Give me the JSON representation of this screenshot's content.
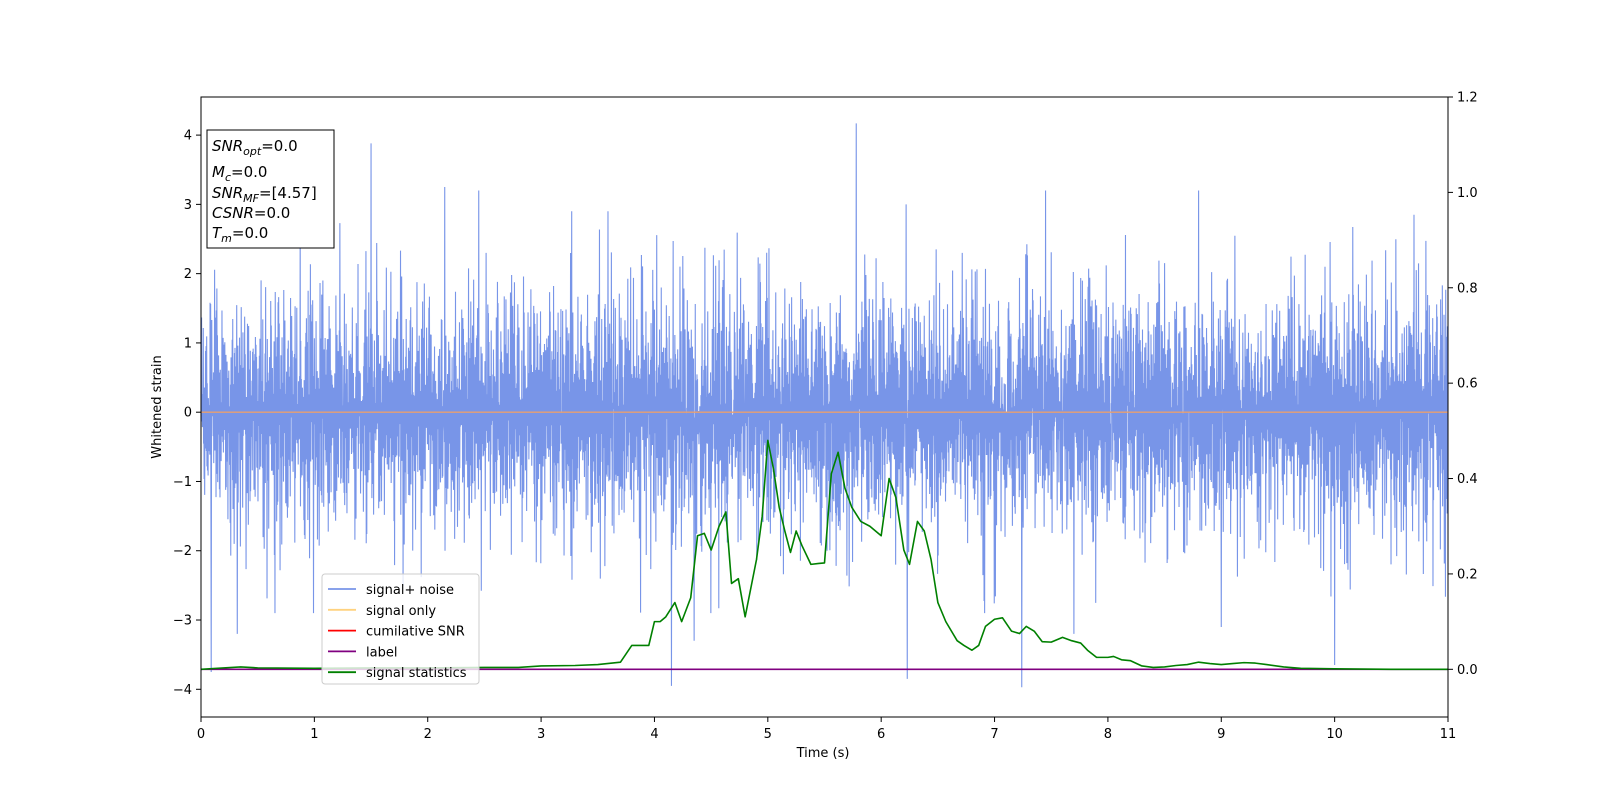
{
  "chart_data": {
    "type": "line",
    "xlabel": "Time (s)",
    "ylabel": "Whitened strain",
    "xlim": [
      0,
      11
    ],
    "ylim": [
      -4.4,
      4.55
    ],
    "y2lim": [
      -0.1,
      1.2
    ],
    "x_ticks": [
      0,
      1,
      2,
      3,
      4,
      5,
      6,
      7,
      8,
      9,
      10,
      11
    ],
    "y_ticks": [
      -4,
      -3,
      -2,
      -1,
      0,
      1,
      2,
      3,
      4
    ],
    "y2_ticks": [
      "0.0",
      "0.2",
      "0.4",
      "0.6",
      "0.8",
      "1.0",
      "1.2"
    ],
    "grid": false,
    "legend_position": "lower-left",
    "legend": [
      {
        "label": "signal+ noise",
        "color": "#7895e8"
      },
      {
        "label": "signal only",
        "color": "#ffd27f"
      },
      {
        "label": "cumilative SNR",
        "color": "#ff0000"
      },
      {
        "label": "label",
        "color": "#800080"
      },
      {
        "label": "signal statistics",
        "color": "#008000"
      }
    ],
    "annotation": {
      "lines": [
        {
          "main": "SNR",
          "sub": "opt",
          "value": "=0.0"
        },
        {
          "main": "M",
          "sub": "c",
          "value": "=0.0"
        },
        {
          "main": "SNR",
          "sub": "MF",
          "value": "=[4.57]"
        },
        {
          "main": "CSNR",
          "sub": "",
          "value": "=0.0"
        },
        {
          "main": "T",
          "sub": "m",
          "value": "=0.0"
        }
      ]
    },
    "series": [
      {
        "name": "signal+ noise",
        "axis": "left",
        "color": "#7895e8",
        "description_samples": "noise",
        "envelope_typical": [
          -1.7,
          1.7
        ],
        "spikes": [
          {
            "x": 0.09,
            "y": -3.75
          },
          {
            "x": 0.32,
            "y": -3.2
          },
          {
            "x": 1.5,
            "y": 3.88
          },
          {
            "x": 2.15,
            "y": 3.25
          },
          {
            "x": 2.45,
            "y": 3.2
          },
          {
            "x": 4.15,
            "y": -3.95
          },
          {
            "x": 4.35,
            "y": -3.3
          },
          {
            "x": 5.78,
            "y": 4.17
          },
          {
            "x": 6.22,
            "y": 3.0
          },
          {
            "x": 6.23,
            "y": -3.85
          },
          {
            "x": 7.24,
            "y": -3.97
          },
          {
            "x": 7.45,
            "y": 3.2
          },
          {
            "x": 7.7,
            "y": -3.2
          },
          {
            "x": 8.8,
            "y": 3.2
          },
          {
            "x": 9.0,
            "y": -3.1
          },
          {
            "x": 10.0,
            "y": -3.65
          },
          {
            "x": 10.7,
            "y": 2.85
          }
        ]
      },
      {
        "name": "signal only",
        "axis": "left",
        "color": "#ffd27f",
        "x": [
          0,
          11
        ],
        "y": [
          0,
          0
        ]
      },
      {
        "name": "label",
        "axis": "right",
        "color": "#800080",
        "x": [
          0,
          11
        ],
        "y": [
          0,
          0
        ]
      },
      {
        "name": "signal statistics",
        "axis": "right",
        "color": "#008000",
        "x": [
          0,
          0.2,
          0.35,
          0.5,
          1.0,
          1.5,
          2.0,
          2.5,
          2.8,
          3.0,
          3.3,
          3.5,
          3.7,
          3.8,
          3.85,
          3.95,
          4.0,
          4.05,
          4.1,
          4.18,
          4.24,
          4.32,
          4.38,
          4.44,
          4.5,
          4.57,
          4.63,
          4.68,
          4.74,
          4.8,
          4.85,
          4.9,
          4.95,
          5.0,
          5.05,
          5.1,
          5.15,
          5.2,
          5.25,
          5.3,
          5.38,
          5.45,
          5.5,
          5.56,
          5.62,
          5.68,
          5.74,
          5.82,
          5.9,
          6.0,
          6.07,
          6.13,
          6.2,
          6.25,
          6.32,
          6.38,
          6.44,
          6.5,
          6.57,
          6.67,
          6.73,
          6.8,
          6.86,
          6.92,
          7.0,
          7.07,
          7.15,
          7.22,
          7.28,
          7.35,
          7.42,
          7.5,
          7.6,
          7.68,
          7.76,
          7.82,
          7.9,
          8.0,
          8.05,
          8.12,
          8.2,
          8.3,
          8.4,
          8.5,
          8.6,
          8.7,
          8.8,
          8.9,
          9.0,
          9.1,
          9.2,
          9.3,
          9.4,
          9.55,
          9.7,
          10.0,
          10.5,
          11.0
        ],
        "y": [
          0.0,
          0.003,
          0.005,
          0.003,
          0.002,
          0.003,
          0.003,
          0.004,
          0.004,
          0.007,
          0.008,
          0.01,
          0.015,
          0.05,
          0.05,
          0.05,
          0.1,
          0.1,
          0.11,
          0.14,
          0.1,
          0.15,
          0.28,
          0.285,
          0.25,
          0.3,
          0.33,
          0.18,
          0.19,
          0.11,
          0.17,
          0.23,
          0.32,
          0.48,
          0.42,
          0.34,
          0.29,
          0.245,
          0.29,
          0.26,
          0.22,
          0.222,
          0.223,
          0.41,
          0.455,
          0.38,
          0.34,
          0.31,
          0.3,
          0.28,
          0.4,
          0.36,
          0.25,
          0.22,
          0.31,
          0.29,
          0.23,
          0.14,
          0.1,
          0.06,
          0.05,
          0.04,
          0.05,
          0.09,
          0.105,
          0.108,
          0.08,
          0.075,
          0.09,
          0.08,
          0.058,
          0.057,
          0.067,
          0.06,
          0.055,
          0.04,
          0.025,
          0.025,
          0.027,
          0.02,
          0.018,
          0.007,
          0.004,
          0.005,
          0.008,
          0.01,
          0.015,
          0.012,
          0.01,
          0.012,
          0.014,
          0.013,
          0.01,
          0.005,
          0.002,
          0.001,
          0.0,
          0.0
        ]
      }
    ]
  }
}
